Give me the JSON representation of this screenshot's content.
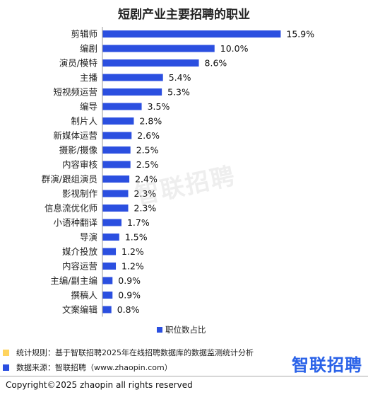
{
  "colors": {
    "bar": "#2b4fe0",
    "note_yellow": "#ffd45e",
    "note_blue": "#2b4fe0",
    "logo": "#2a62e8"
  },
  "chart_data": {
    "type": "bar",
    "orientation": "horizontal",
    "title": "短剧产业主要招聘的职业",
    "categories": [
      "剪辑师",
      "编剧",
      "演员/模特",
      "主播",
      "短视频运营",
      "编导",
      "制片人",
      "新媒体运营",
      "摄影/摄像",
      "内容审核",
      "群演/跟组演员",
      "影视制作",
      "信息流优化师",
      "小语种翻译",
      "导演",
      "媒介投放",
      "内容运营",
      "主编/副主编",
      "撰稿人",
      "文案编辑"
    ],
    "series": [
      {
        "name": "职位数占比",
        "values": [
          15.9,
          10.0,
          8.6,
          5.4,
          5.3,
          3.5,
          2.8,
          2.6,
          2.5,
          2.5,
          2.4,
          2.3,
          2.3,
          1.7,
          1.5,
          1.2,
          1.2,
          0.9,
          0.9,
          0.8
        ],
        "labels": [
          "15.9%",
          "10.0%",
          "8.6%",
          "5.4%",
          "5.3%",
          "3.5%",
          "2.8%",
          "2.6%",
          "2.5%",
          "2.5%",
          "2.4%",
          "2.3%",
          "2.3%",
          "1.7%",
          "1.5%",
          "1.2%",
          "1.2%",
          "0.9%",
          "0.9%",
          "0.8%"
        ]
      }
    ],
    "legend_position": "bottom",
    "grid": false,
    "xlim": [
      0,
      16
    ]
  },
  "watermark": "智联招聘",
  "notes": {
    "rule": "统计规则：基于智联招聘2025年在线招聘数据库的数据监测统计分析",
    "source": "数据来源：智联招聘（www.zhaopin.com）"
  },
  "logo": "智联招聘",
  "copyright": "Copyright©2025 zhaopin all rights reserved"
}
